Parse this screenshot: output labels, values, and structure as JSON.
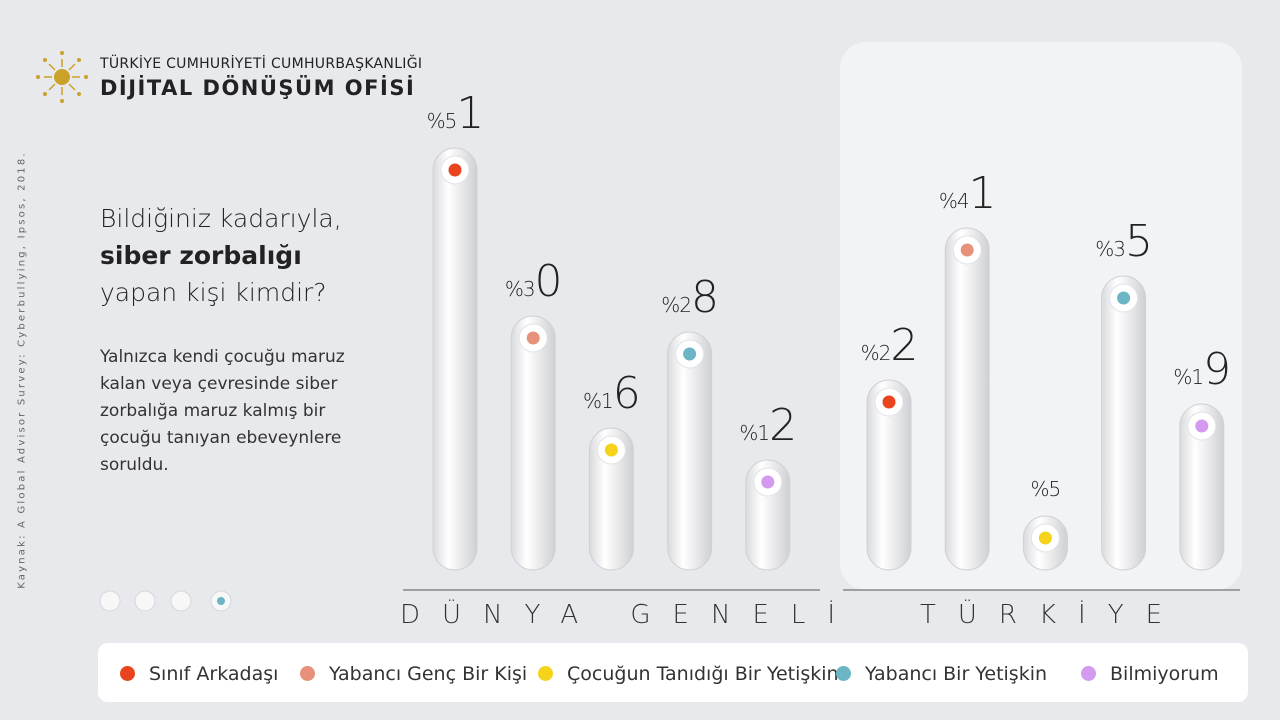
{
  "header": {
    "org": "TÜRKİYE CUMHURİYETİ CUMHURBAŞKANLIĞI",
    "title": "DİJİTAL DÖNÜŞÜM OFİSİ"
  },
  "question": [
    "Bildiğiniz kadarıyla,",
    "siber zorbalığı",
    "yapan kişi kimdir?"
  ],
  "description": "Yalnızca kendi çocuğu maruz kalan veya çevresinde siber zorbalığa maruz kalmış bir çocuğu tanıyan ebeveynlere soruldu.",
  "source": "Kaynak: A Global Advisor Survey: Cyberbullying, Ipsos, 2018.",
  "chart_data": {
    "type": "bar",
    "categories": [
      "DÜNYA GENELİ",
      "TÜRKİYE"
    ],
    "series": [
      {
        "name": "Sınıf Arkadaşı",
        "color": "#e8451e",
        "values": [
          51,
          22
        ],
        "value_labels": [
          "%51",
          "%22"
        ]
      },
      {
        "name": "Yabancı Genç Bir Kişi",
        "color": "#e8917a",
        "values": [
          30,
          41
        ],
        "value_labels": [
          "%30",
          "%41"
        ]
      },
      {
        "name": "Çocuğun Tanıdığı Bir Yetişkin",
        "color": "#f5d31a",
        "values": [
          16,
          5
        ],
        "value_labels": [
          "%16",
          "%5"
        ]
      },
      {
        "name": "Yabancı Bir Yetişkin",
        "color": "#6bb5c4",
        "values": [
          28,
          35
        ],
        "value_labels": [
          "%28",
          "%35"
        ]
      },
      {
        "name": "Bilmiyorum",
        "color": "#d39af0",
        "values": [
          12,
          19
        ],
        "value_labels": [
          "%12",
          "%19"
        ]
      }
    ]
  }
}
